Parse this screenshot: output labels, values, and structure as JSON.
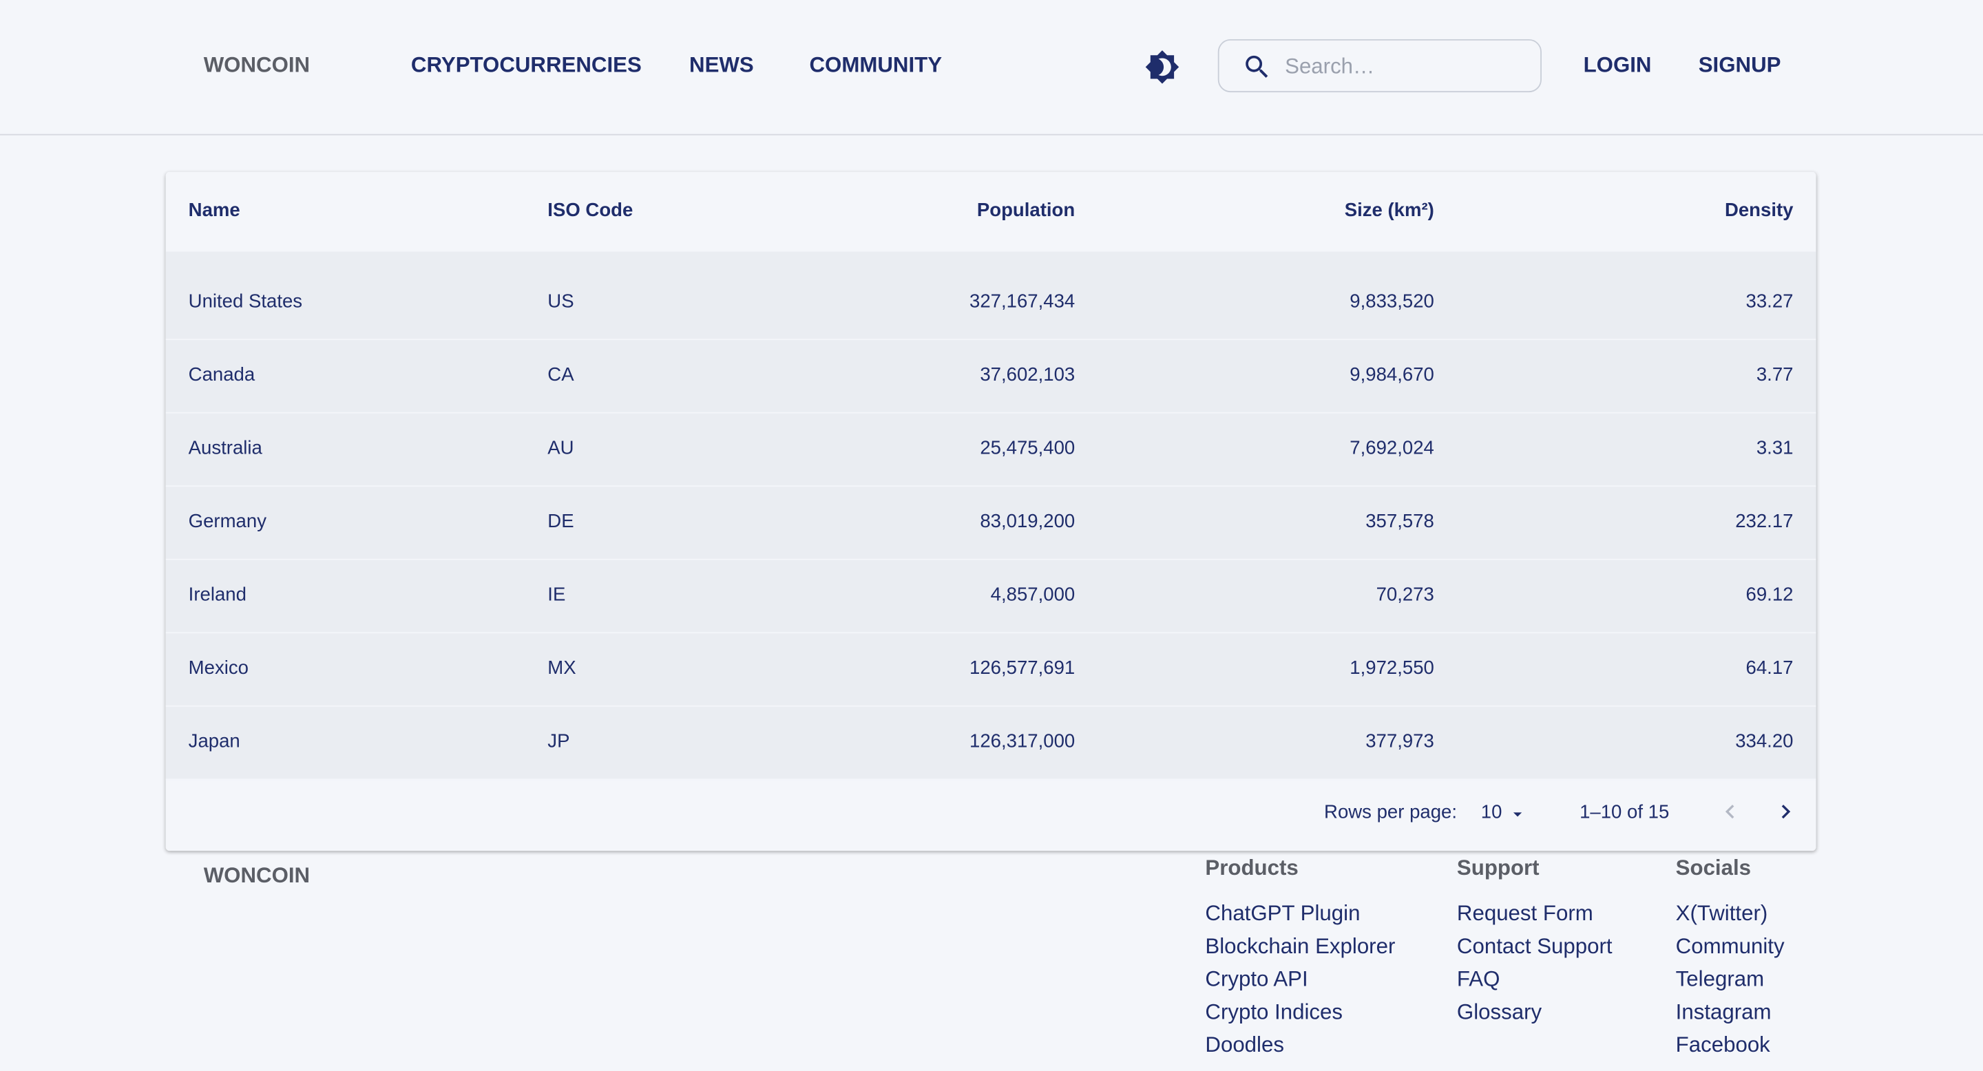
{
  "header": {
    "brand": "WONCOIN",
    "nav": [
      "CRYPTOCURRENCIES",
      "NEWS",
      "COMMUNITY"
    ],
    "search_placeholder": "Search…",
    "login": "LOGIN",
    "signup": "SIGNUP"
  },
  "table": {
    "columns": [
      "Name",
      "ISO Code",
      "Population",
      "Size (km²)",
      "Density"
    ],
    "rows": [
      [
        "United States",
        "US",
        "327,167,434",
        "9,833,520",
        "33.27"
      ],
      [
        "Canada",
        "CA",
        "37,602,103",
        "9,984,670",
        "3.77"
      ],
      [
        "Australia",
        "AU",
        "25,475,400",
        "7,692,024",
        "3.31"
      ],
      [
        "Germany",
        "DE",
        "83,019,200",
        "357,578",
        "232.17"
      ],
      [
        "Ireland",
        "IE",
        "4,857,000",
        "70,273",
        "69.12"
      ],
      [
        "Mexico",
        "MX",
        "126,577,691",
        "1,972,550",
        "64.17"
      ],
      [
        "Japan",
        "JP",
        "126,317,000",
        "377,973",
        "334.20"
      ]
    ]
  },
  "pagination": {
    "rows_per_page_label": "Rows per page:",
    "rows_per_page": "10",
    "range": "1–10 of 15"
  },
  "footer": {
    "brand": "WONCOIN",
    "columns": [
      {
        "heading": "Products",
        "links": [
          "ChatGPT Plugin",
          "Blockchain Explorer",
          "Crypto API",
          "Crypto Indices",
          "Doodles"
        ]
      },
      {
        "heading": "Support",
        "links": [
          "Request Form",
          "Contact Support",
          "FAQ",
          "Glossary"
        ]
      },
      {
        "heading": "Socials",
        "links": [
          "X(Twitter)",
          "Community",
          "Telegram",
          "Instagram",
          "Facebook"
        ]
      }
    ]
  }
}
